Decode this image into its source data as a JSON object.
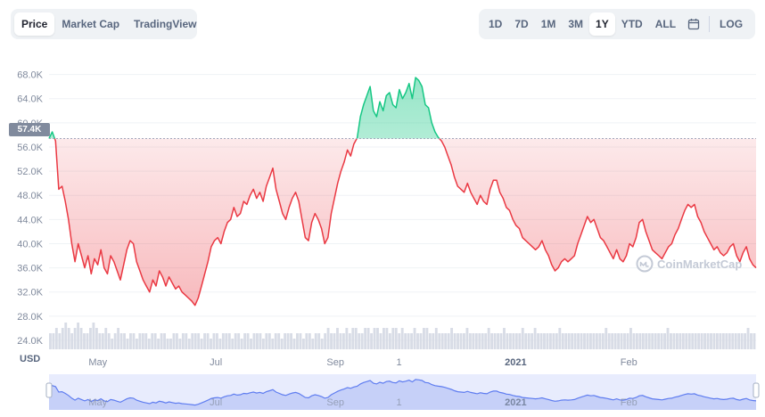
{
  "tabs": [
    {
      "label": "Price",
      "active": true
    },
    {
      "label": "Market Cap",
      "active": false
    },
    {
      "label": "TradingView",
      "active": false
    }
  ],
  "ranges": [
    {
      "label": "1D",
      "active": false
    },
    {
      "label": "7D",
      "active": false
    },
    {
      "label": "1M",
      "active": false
    },
    {
      "label": "3M",
      "active": false
    },
    {
      "label": "1Y",
      "active": true
    },
    {
      "label": "YTD",
      "active": false
    },
    {
      "label": "ALL",
      "active": false
    }
  ],
  "calendar_icon": "calendar-icon",
  "log_label": "LOG",
  "current_price_label": "57.4K",
  "currency_label": "USD",
  "watermark": "CoinMarketCap",
  "colors": {
    "up": "#16c784",
    "down": "#ea3943",
    "brush": "#5f7df0"
  },
  "chart_data": {
    "type": "area",
    "title": "",
    "xlabel": "",
    "ylabel": "",
    "ylim": [
      24000,
      70000
    ],
    "yticks": [
      {
        "label": "68.0K",
        "value": 68000
      },
      {
        "label": "64.0K",
        "value": 64000
      },
      {
        "label": "60.0K",
        "value": 60000
      },
      {
        "label": "56.0K",
        "value": 56000
      },
      {
        "label": "52.0K",
        "value": 52000
      },
      {
        "label": "48.0K",
        "value": 48000
      },
      {
        "label": "44.0K",
        "value": 44000
      },
      {
        "label": "40.0K",
        "value": 40000
      },
      {
        "label": "36.0K",
        "value": 36000
      },
      {
        "label": "32.0K",
        "value": 32000
      },
      {
        "label": "28.0K",
        "value": 28000
      },
      {
        "label": "24.0K",
        "value": 24000
      }
    ],
    "xticks": [
      {
        "label": "May",
        "t": 0.069,
        "bold": false
      },
      {
        "label": "Jul",
        "t": 0.236,
        "bold": false
      },
      {
        "label": "Sep",
        "t": 0.405,
        "bold": false
      },
      {
        "label": "1",
        "t": 0.495,
        "bold": false
      },
      {
        "label": "2021",
        "t": 0.66,
        "bold": true
      },
      {
        "label": "Feb",
        "t": 0.82,
        "bold": false
      }
    ],
    "baseline": 57400,
    "current_value": 57400,
    "series": [
      {
        "values": [
          57400,
          58500,
          57000,
          49000,
          49500,
          47000,
          44000,
          40000,
          37000,
          40000,
          38000,
          36000,
          38000,
          35000,
          37500,
          36500,
          39000,
          36000,
          35000,
          38000,
          37000,
          35500,
          34000,
          36500,
          39000,
          40500,
          40000,
          37000,
          35500,
          34000,
          33000,
          32000,
          34000,
          33000,
          35500,
          34500,
          33000,
          34500,
          33500,
          32500,
          33000,
          32000,
          31500,
          31000,
          30500,
          29800,
          31000,
          33000,
          35000,
          37000,
          39500,
          40500,
          41000,
          40000,
          42000,
          43500,
          44000,
          46000,
          44500,
          45000,
          47000,
          46500,
          48000,
          49000,
          47500,
          48500,
          47000,
          49500,
          51000,
          52500,
          49000,
          47000,
          45000,
          44000,
          46000,
          47500,
          48500,
          47000,
          44000,
          41000,
          40500,
          43500,
          45000,
          44000,
          42500,
          40000,
          41000,
          45000,
          47500,
          50000,
          52000,
          53500,
          55500,
          54500,
          56500,
          57500,
          61000,
          63000,
          64500,
          66000,
          62000,
          61000,
          63500,
          62000,
          64500,
          65000,
          63000,
          62500,
          65500,
          64000,
          65000,
          66500,
          64000,
          67500,
          67000,
          66000,
          63000,
          62500,
          60000,
          58500,
          57600,
          57000,
          56000,
          54500,
          53000,
          51000,
          49500,
          49000,
          48500,
          50000,
          48500,
          47500,
          46500,
          48000,
          47000,
          46500,
          49000,
          50500,
          50500,
          48500,
          47500,
          46000,
          45500,
          44000,
          43000,
          42500,
          41000,
          40500,
          40000,
          39500,
          39000,
          39500,
          40500,
          39000,
          38000,
          36500,
          35500,
          36000,
          37000,
          37500,
          37000,
          37500,
          38000,
          40000,
          41500,
          43000,
          44500,
          43500,
          44000,
          42500,
          41000,
          40500,
          39500,
          38500,
          37500,
          39000,
          37500,
          37000,
          38000,
          40000,
          39500,
          41000,
          43500,
          44000,
          42000,
          40500,
          39000,
          38500,
          38000,
          37500,
          38500,
          39500,
          40000,
          41500,
          42500,
          44000,
          45500,
          46500,
          46000,
          46500,
          44500,
          43500,
          42000,
          41000,
          40000,
          39000,
          39500,
          38500,
          38000,
          38500,
          39500,
          40000,
          38000,
          37000,
          38500,
          39500,
          37500,
          36500,
          36000
        ]
      }
    ],
    "volume": [
      3,
      3,
      4,
      3,
      4,
      5,
      4,
      3,
      4,
      5,
      4,
      3,
      3,
      4,
      5,
      4,
      3,
      3,
      4,
      3,
      2,
      3,
      4,
      3,
      3,
      2,
      3,
      3,
      2,
      3,
      3,
      3,
      2,
      3,
      3,
      2,
      3,
      3,
      2,
      2,
      3,
      3,
      2,
      3,
      3,
      2,
      3,
      3,
      3,
      2,
      3,
      3,
      2,
      3,
      3,
      2,
      3,
      3,
      3,
      2,
      3,
      3,
      2,
      3,
      3,
      2,
      3,
      3,
      3,
      2,
      3,
      3,
      2,
      3,
      3,
      2,
      3,
      3,
      3,
      2,
      3,
      3,
      2,
      3,
      3,
      2,
      3,
      3,
      2,
      3,
      4,
      3,
      3,
      4,
      3,
      3,
      4,
      3,
      4,
      4,
      3,
      3,
      4,
      4,
      3,
      4,
      4,
      3,
      4,
      4,
      3,
      4,
      4,
      3,
      4,
      3,
      3,
      3,
      4,
      3,
      3,
      4,
      4,
      3,
      3,
      4,
      3,
      3,
      3,
      3,
      4,
      3,
      3,
      3,
      3,
      4,
      3,
      3,
      3,
      3,
      3,
      3,
      4,
      3,
      3,
      3,
      3,
      4,
      3,
      3,
      3,
      3,
      3,
      4,
      3,
      3,
      3,
      4,
      3,
      3,
      3,
      3,
      3,
      3,
      3,
      4,
      3,
      3,
      3,
      3,
      3,
      3,
      3,
      3,
      3,
      3,
      3,
      3,
      3,
      3,
      4,
      3,
      3,
      3,
      3,
      3,
      3,
      3,
      4,
      3,
      3,
      3,
      3,
      3,
      3,
      3,
      3,
      3,
      3,
      3,
      4,
      3,
      3,
      3,
      3,
      3,
      3,
      3,
      3,
      3,
      3,
      3,
      3,
      3,
      3,
      3,
      3,
      3,
      3,
      3,
      3,
      3,
      3,
      3,
      3,
      3,
      4,
      3,
      3
    ]
  }
}
